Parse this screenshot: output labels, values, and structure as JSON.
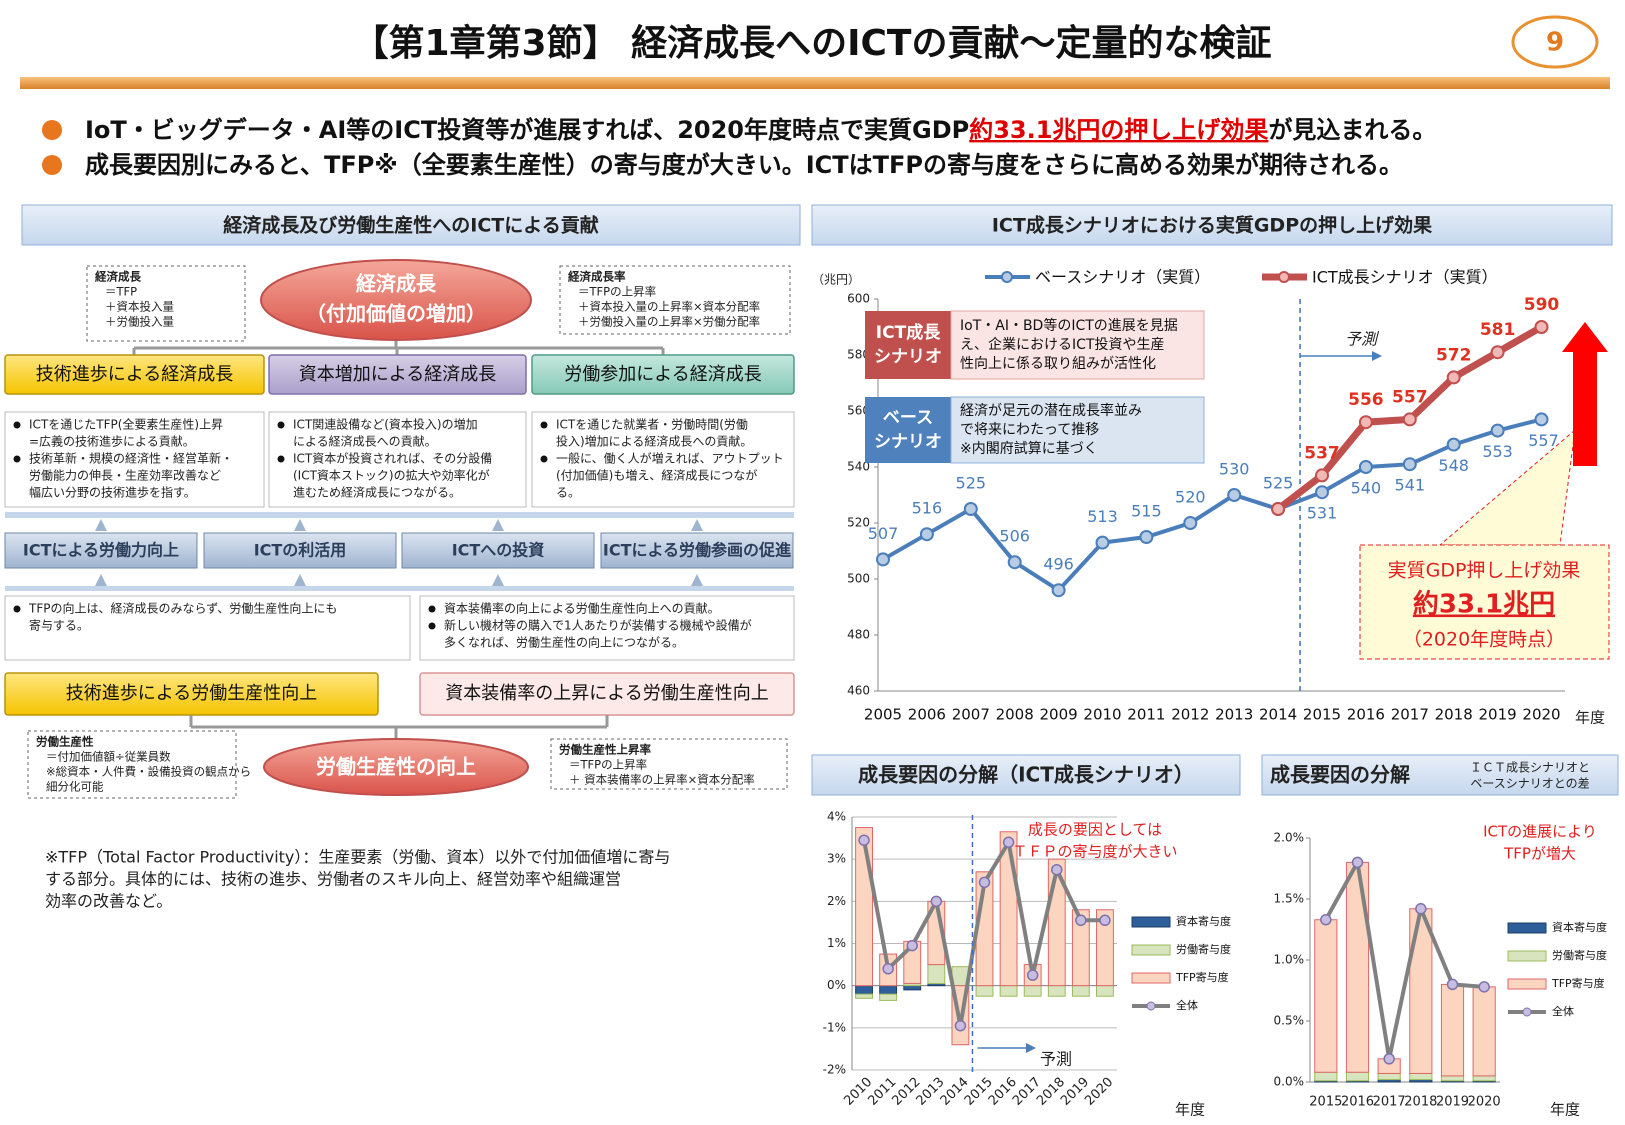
{
  "header": {
    "title": "【第1章第3節】 経済成長へのICTの貢献～定量的な検証",
    "page_number": "9"
  },
  "summary": {
    "bullet1": [
      "IoT・ビッグデータ・AI等のICT投資等が進展すれば、2020年度時点で実質GDP",
      "約33.1兆円の押し上げ効果",
      "が見込まれる。"
    ],
    "bullet2": "成長要因別にみると、TFP※（全要素生産性）の寄与度が大きい。ICTはTFPの寄与度をさらに高める効果が期待される。"
  },
  "diagram": {
    "title": "経済成長及び労働生産性へのICTによる貢献",
    "top_node": [
      "経済成長",
      "（付加価値の増加）"
    ],
    "top_left_def": [
      "経済成長",
      "＝TFP",
      "＋資本投入量",
      "＋労働投入量"
    ],
    "top_right_def": [
      "経済成長率",
      "＝TFPの上昇率",
      "＋資本投入量の上昇率×資本分配率",
      "＋労働投入量の上昇率×労働分配率"
    ],
    "growth_factors": [
      {
        "label": "技術進歩による経済成長",
        "notes": [
          [
            "ICTを通じたTFP(全要素生産性)上昇",
            "=広義の技術進歩による貢献。"
          ],
          [
            "技術革新・規模の経済性・経営革新・",
            "労働能力の伸長・生産効率改善など",
            "幅広い分野の技術進歩を指す。"
          ]
        ]
      },
      {
        "label": "資本増加による経済成長",
        "notes": [
          [
            "ICT関連設備など(資本投入)の増加",
            "による経済成長への貢献。"
          ],
          [
            "ICT資本が投資されれば、その分設備",
            "(ICT資本ストック)の拡大や効率化が",
            "進むため経済成長につながる。"
          ]
        ]
      },
      {
        "label": "労働参加による経済成長",
        "notes": [
          [
            "ICTを通じた就業者・労働時間(労働",
            "投入)増加による経済成長への貢献。"
          ],
          [
            "一般に、働く人が増えれば、アウトプット",
            "(付加価値)も増え、経済成長につなが",
            "る。"
          ]
        ]
      }
    ],
    "ict_roles": [
      "ICTによる労働力向上",
      "ICTの利活用",
      "ICTへの投資",
      "ICTによる労働参画の促進"
    ],
    "productivity_factors": [
      {
        "label": "技術進歩による労働生産性向上",
        "notes": [
          [
            "TFPの向上は、経済成長のみならず、労働生産性向上にも",
            "寄与する。"
          ]
        ]
      },
      {
        "label": "資本装備率の上昇による労働生産性向上",
        "notes": [
          [
            "資本装備率の向上による労働生産性向上への貢献。"
          ],
          [
            "新しい機材等の購入で1人あたりが装備する機械や設備が",
            "多くなれば、労働生産性の向上につながる。"
          ]
        ]
      }
    ],
    "bottom_node": "労働生産性の向上",
    "bottom_left_def": [
      "労働生産性",
      "＝付加価値額÷従業員数",
      "※総資本・人件費・設備投資の観点から",
      "細分化可能"
    ],
    "bottom_right_def": [
      "労働生産性上昇率",
      "＝TFPの上昇率",
      "＋ 資本装備率の上昇率×資本分配率"
    ],
    "footnote": [
      "※TFP（Total Factor Productivity）：生産要素（労働、資本）以外で付加価値増に寄与",
      "する部分。具体的には、技術の進歩、労働者のスキル向上、経営効率や組織運営",
      "効率の改善など。"
    ]
  },
  "chart_data": [
    {
      "type": "line",
      "title": "ICT成長シナリオにおける実質GDPの押し上げ効果",
      "y_unit": "（兆円）",
      "x_unit": "年度",
      "categories": [
        "2005",
        "2006",
        "2007",
        "2008",
        "2009",
        "2010",
        "2011",
        "2012",
        "2013",
        "2014",
        "2015",
        "2016",
        "2017",
        "2018",
        "2019",
        "2020"
      ],
      "series": [
        {
          "name": "ベースシナリオ（実質）",
          "color": "#4a7ebb",
          "values": [
            507,
            516,
            525,
            506,
            496,
            513,
            515,
            520,
            530,
            525,
            531,
            540,
            541,
            548,
            553,
            557
          ]
        },
        {
          "name": "ICT成長シナリオ（実質）",
          "color": "#c0504d",
          "values": [
            null,
            null,
            null,
            null,
            null,
            null,
            null,
            null,
            null,
            525,
            537,
            556,
            557,
            572,
            581,
            590
          ],
          "value_labels": [
            null,
            null,
            null,
            null,
            null,
            null,
            null,
            null,
            null,
            null,
            "537",
            "556",
            "557",
            "572",
            "581",
            "590"
          ]
        }
      ],
      "ylim": [
        460,
        600
      ],
      "yticks": [
        460,
        480,
        500,
        520,
        540,
        560,
        580,
        600
      ],
      "grid": false,
      "forecast_label": "予測",
      "ict_box": {
        "label": [
          "ICT成長",
          "シナリオ"
        ],
        "text": [
          "IoT・AI・BD等のICTの進展を見据",
          "え、企業におけるICT投資や生産",
          "性向上に係る取り組みが活性化"
        ]
      },
      "base_box": {
        "label": [
          "ベース",
          "シナリオ"
        ],
        "text": [
          "経済が足元の潜在成長率並み",
          "で将来にわたって推移",
          "※内閣府試算に基づく"
        ]
      },
      "callout": [
        "実質GDP押し上げ効果",
        "約33.1兆円",
        "（2020年度時点）"
      ]
    },
    {
      "type": "bar",
      "stacked": true,
      "title": "成長要因の分解（ICT成長シナリオ）",
      "x_unit": "年度",
      "categories": [
        "2010",
        "2011",
        "2012",
        "2013",
        "2014",
        "2015",
        "2016",
        "2017",
        "2018",
        "2019",
        "2020"
      ],
      "series": [
        {
          "name": "資本寄与度",
          "color": "#2e5f9a",
          "values": [
            -0.2,
            -0.2,
            -0.1,
            0.05,
            0,
            0,
            0,
            0,
            0,
            0,
            0
          ]
        },
        {
          "name": "労働寄与度",
          "color": "#d7e4bd",
          "values": [
            -0.1,
            -0.15,
            0.05,
            0.45,
            0.45,
            -0.25,
            -0.25,
            -0.25,
            -0.25,
            -0.25,
            -0.25
          ]
        },
        {
          "name": "TFP寄与度",
          "color": "#fbd5c0",
          "values": [
            3.75,
            0.75,
            1.0,
            1.5,
            -1.4,
            2.7,
            3.65,
            0.5,
            3.0,
            1.8,
            1.8
          ]
        },
        {
          "name": "全体",
          "type": "line",
          "color": "#808080",
          "values": [
            3.45,
            0.4,
            0.95,
            2.0,
            -0.95,
            2.45,
            3.4,
            0.25,
            2.75,
            1.55,
            1.55
          ]
        }
      ],
      "ylim": [
        -2,
        4
      ],
      "yticks": [
        {
          "value": -2,
          "label": "-2%"
        },
        {
          "value": -1,
          "label": "-1%"
        },
        {
          "value": 0,
          "label": "0%"
        },
        {
          "value": 1,
          "label": "1%"
        },
        {
          "value": 2,
          "label": "2%"
        },
        {
          "value": 3,
          "label": "3%"
        },
        {
          "value": 4,
          "label": "4%"
        }
      ],
      "grid": true,
      "forecast_label": "予測",
      "annotation": [
        "成長の要因としては",
        "ＴＦＰの寄与度が大きい"
      ]
    },
    {
      "type": "bar",
      "stacked": true,
      "title": "成長要因の分解",
      "subtitle": [
        "ＩＣＴ成長シナリオと",
        "ベースシナリオとの差"
      ],
      "x_unit": "年度",
      "categories": [
        "2015",
        "2016",
        "2017",
        "2018",
        "2019",
        "2020"
      ],
      "series": [
        {
          "name": "資本寄与度",
          "color": "#2e5f9a",
          "values": [
            0.01,
            0.01,
            0.02,
            0.02,
            0.01,
            0.01
          ]
        },
        {
          "name": "労働寄与度",
          "color": "#d7e4bd",
          "values": [
            0.07,
            0.07,
            0.05,
            0.05,
            0.04,
            0.04
          ]
        },
        {
          "name": "TFP寄与度",
          "color": "#fbd5c0",
          "values": [
            1.25,
            1.72,
            0.12,
            1.35,
            0.75,
            0.73
          ]
        },
        {
          "name": "全体",
          "type": "line",
          "color": "#808080",
          "values": [
            1.33,
            1.8,
            0.19,
            1.42,
            0.8,
            0.78
          ]
        }
      ],
      "ylim": [
        0,
        2
      ],
      "yticks": [
        {
          "value": 0,
          "label": "0.0%"
        },
        {
          "value": 0.5,
          "label": "0.5%"
        },
        {
          "value": 1,
          "label": "1.0%"
        },
        {
          "value": 1.5,
          "label": "1.5%"
        },
        {
          "value": 2,
          "label": "2.0%"
        }
      ],
      "grid": false,
      "annotation": [
        "ICTの進展により",
        "TFPが増大"
      ]
    }
  ]
}
